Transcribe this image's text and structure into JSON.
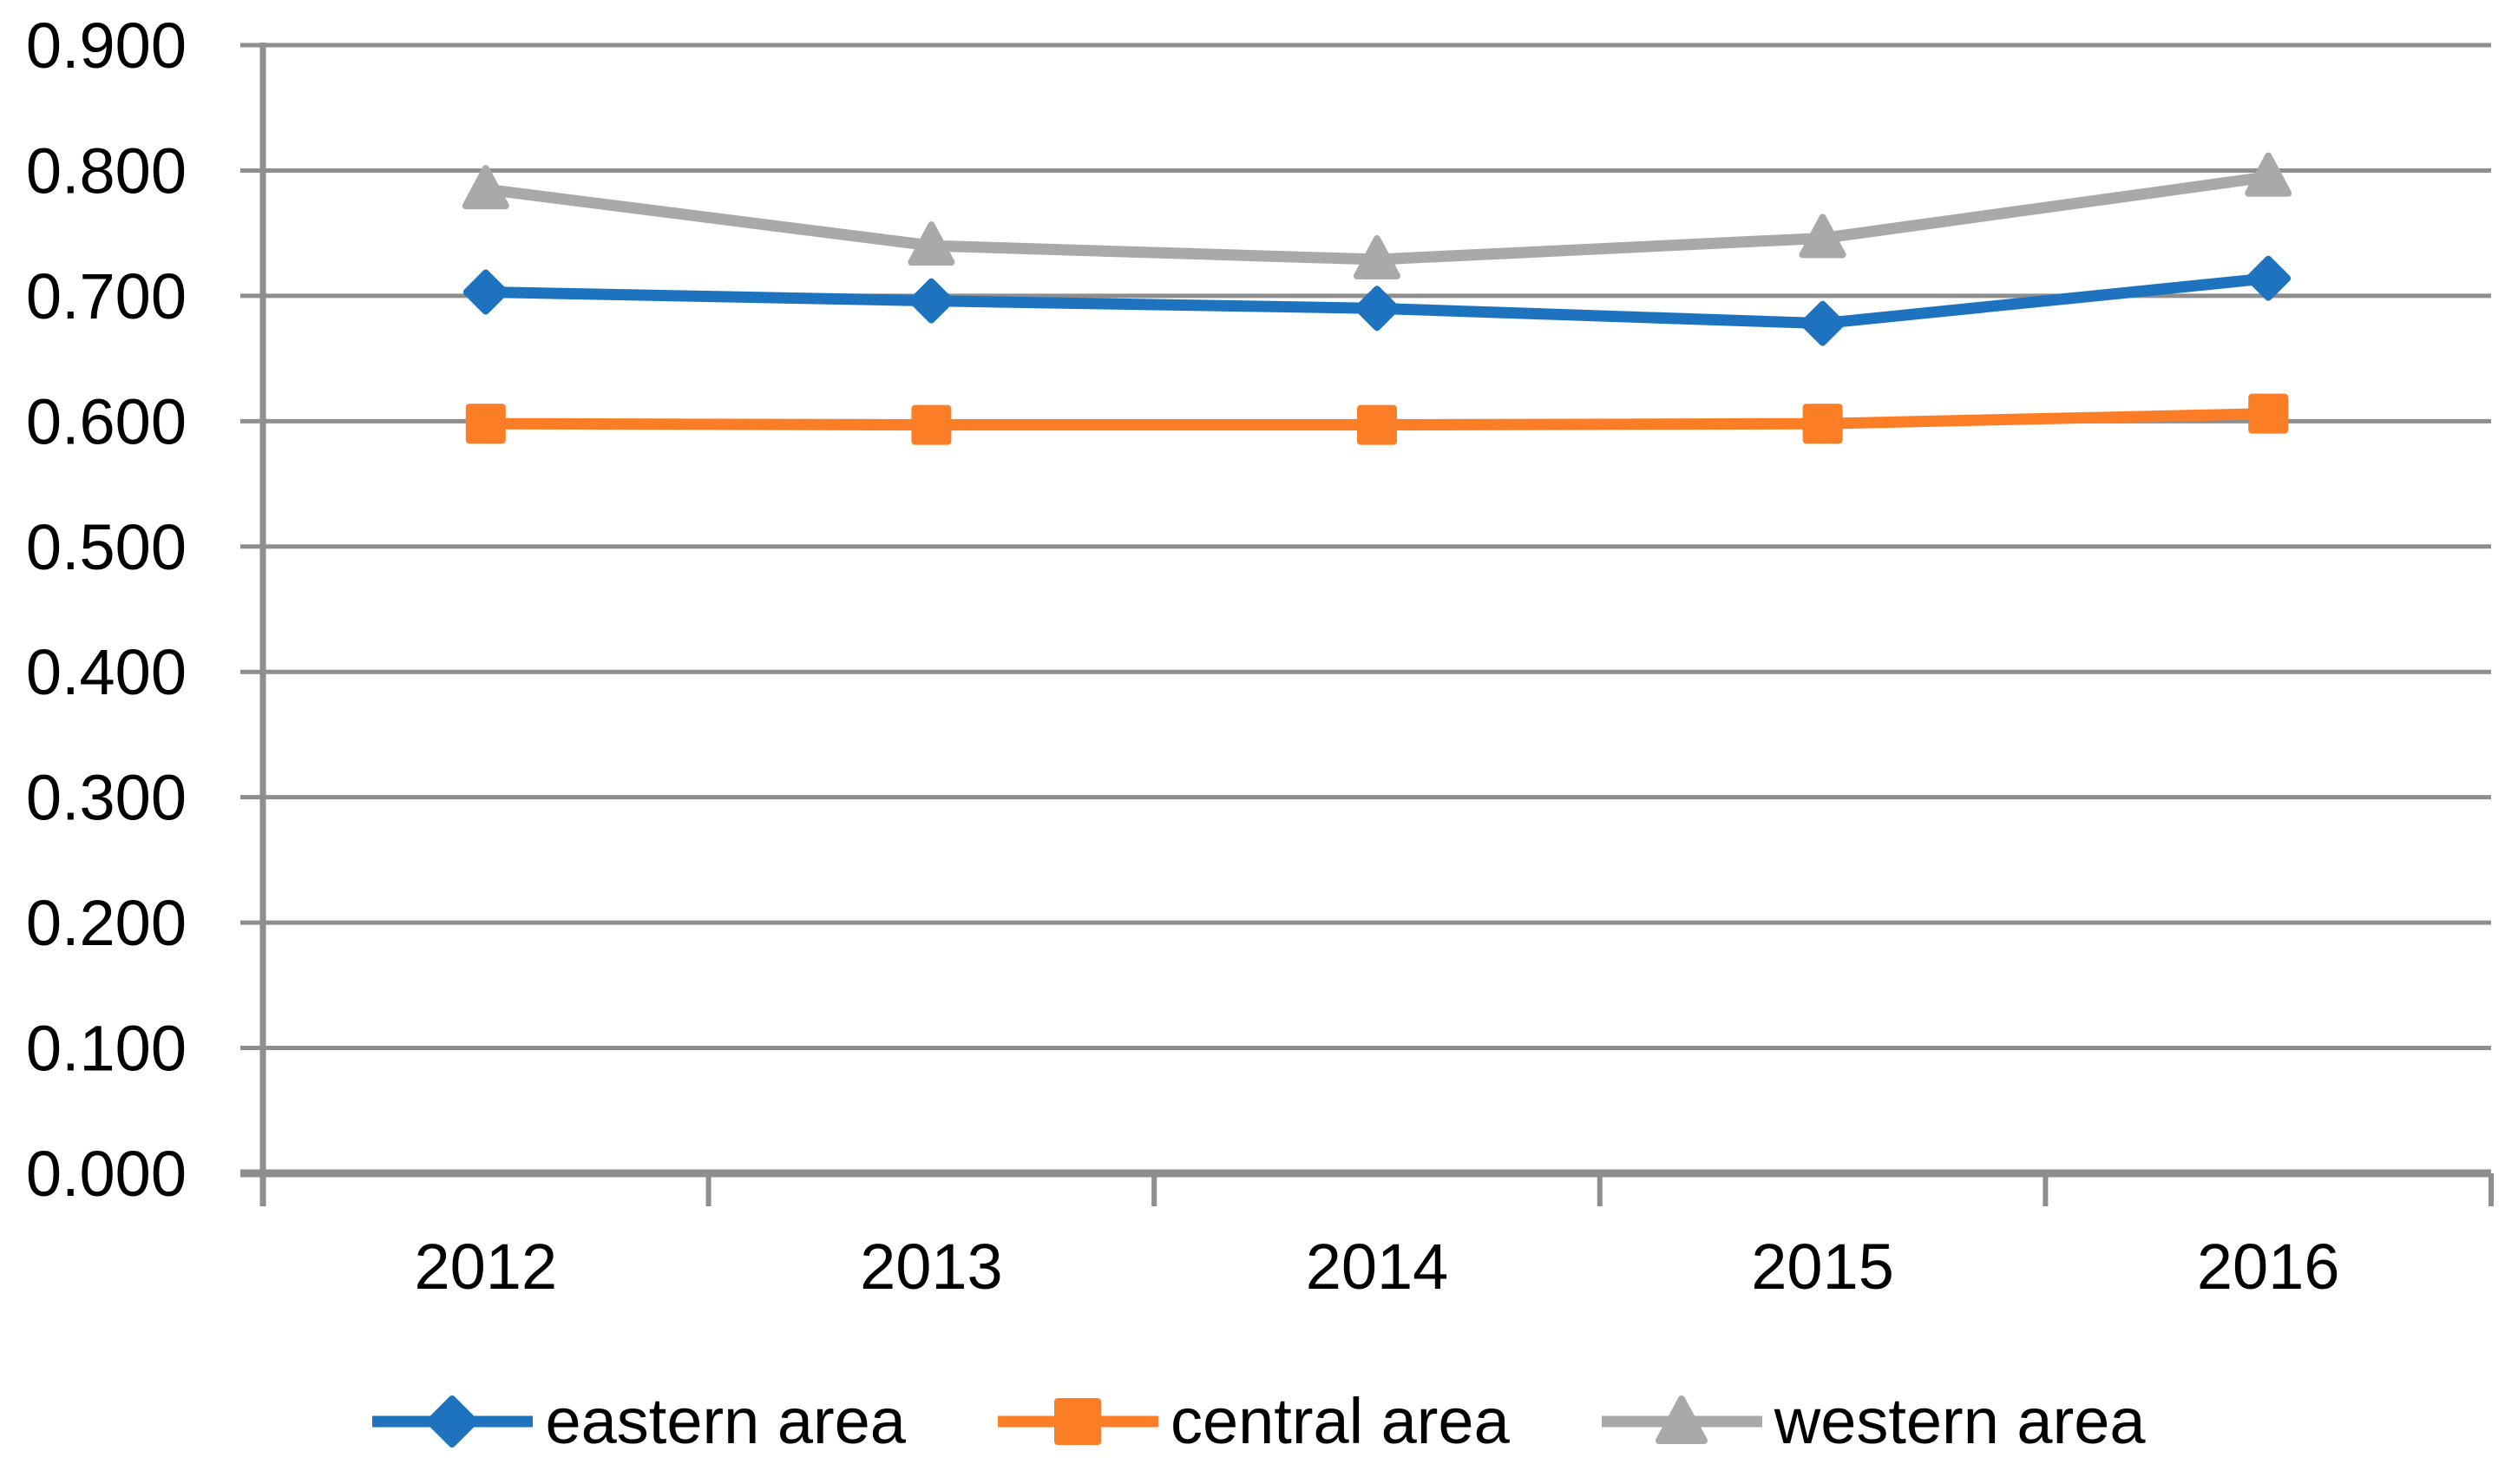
{
  "chart_data": {
    "type": "line",
    "title": "",
    "categories": [
      "2012",
      "2013",
      "2014",
      "2015",
      "2016"
    ],
    "series": [
      {
        "name": "eastern area",
        "color": "#1E73BE",
        "marker": "diamond",
        "values": [
          0.703,
          0.696,
          0.69,
          0.678,
          0.714
        ]
      },
      {
        "name": "central area",
        "color": "#FB7D26",
        "marker": "square",
        "values": [
          0.598,
          0.597,
          0.597,
          0.598,
          0.606
        ]
      },
      {
        "name": "western area",
        "color": "#A9A9A9",
        "marker": "triangle",
        "values": [
          0.785,
          0.74,
          0.729,
          0.746,
          0.795
        ]
      }
    ],
    "ylim": [
      0.0,
      0.9
    ],
    "y_tick_step": 0.1,
    "y_tick_labels": [
      "0.000",
      "0.100",
      "0.200",
      "0.300",
      "0.400",
      "0.500",
      "0.600",
      "0.700",
      "0.800",
      "0.900"
    ],
    "xlabel": "",
    "ylabel": "",
    "grid": true,
    "legend_position": "bottom",
    "axis_color": "#8E8E8E",
    "text_color": "#000000",
    "background_color": "#FFFFFF"
  }
}
